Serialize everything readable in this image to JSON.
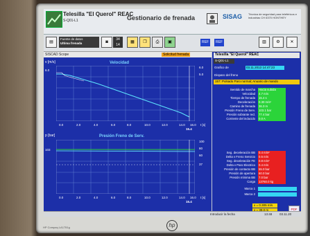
{
  "bezel": {
    "model": "HP Compaq LA1751g",
    "logo": "hp"
  },
  "header": {
    "app_title": "Telesilla \"El Querol\" REAC",
    "app_subtitle": "S-Q01-L1",
    "screen_title": "Gestionario de frenada",
    "brand": "SISAG",
    "brand_text": "Técnica de seguridad para teleféricos e industrias CH 6370 HONTHEY"
  },
  "toolbar": {
    "file_label": "Fuente de datos",
    "file_value": "Ultima frenada",
    "spin_top": "34",
    "spin_bottom": "14",
    "ref_buttons": [
      "REF",
      "REF"
    ]
  },
  "left_panel": {
    "header_left": "SISCAD Scope",
    "status": "Solicitud frenada",
    "chart1": {
      "title": "Velocidad",
      "ylabel": "v [m/s]",
      "ymax_left": "6.0",
      "y_right_top": "6.0",
      "y_right_2": "5.0",
      "xlabel": "t [s]",
      "xmax": "16.0",
      "cursor": "15.4",
      "ticks": [
        "0.0",
        "2.0",
        "4.0",
        "6.0",
        "8.0",
        "10.0",
        "12.0",
        "14.0"
      ]
    },
    "chart2": {
      "title": "Presión Freno de Serv.",
      "ylabel": "p [bar]",
      "y_left": "103",
      "y_right": [
        "100",
        "80",
        "60",
        "37"
      ],
      "xlabel": "t [s]",
      "xmax": "16.0",
      "cursor": "15.4",
      "ticks": [
        "0.0",
        "2.0",
        "4.0",
        "6.0",
        "8.0",
        "10.0",
        "12.0",
        "14.0"
      ]
    }
  },
  "right_panel": {
    "title": "Telesilla \"El Querol\" REAC",
    "id": "S-Q01-L1",
    "grafico_label": "Grafico de",
    "grafico_value": "03.11.2013 14:47:23",
    "disparo_label": "Disparo del freno",
    "description": "157: Pulsado Paro normal; Anuario de mando",
    "green_rows": [
      {
        "label": "Sentido de marcha",
        "value": "Hacia subida"
      },
      {
        "label": "Velocidad",
        "value": "4.7 m/s"
      },
      {
        "label": "Tiempo de frenada",
        "value": "15.4 s"
      },
      {
        "label": "Deceleración",
        "value": "0.30 m/s²"
      },
      {
        "label": "Camino de frenada",
        "value": "36.3 m"
      },
      {
        "label": "Presión Freno de Serv.",
        "value": "103.1 bar"
      },
      {
        "label": "Presión sobrante red.",
        "value": "77.4 bar"
      },
      {
        "label": "Corriente del inducido",
        "value": "0.0 A"
      }
    ],
    "red_rows": [
      {
        "label": "Seg. deceleración BB",
        "value": "0.4 m/s²"
      },
      {
        "label": "Delta v Freno Servicio",
        "value": "0.5 m/s"
      },
      {
        "label": "Seg. deceleración FE",
        "value": "0.8 m/s²"
      },
      {
        "label": "Delta v Paro Electrico",
        "value": "0.4 m/s"
      },
      {
        "label": "Presión de contacto BB",
        "value": "55.0 bar"
      },
      {
        "label": "Presión de apertura",
        "value": "60.0 bar"
      },
      {
        "label": "Presión mínima BB",
        "value": "7.0 bar"
      },
      {
        "label": "Carga",
        "value": "13760.0 kg"
      }
    ],
    "marca1": "Marca 1",
    "marca2": "Marca 2",
    "readout1": "x = 0.305 m/s",
    "readout2": "x = 39.0 m",
    "pdf": "PDF"
  },
  "statusbar": {
    "left": "Introducir la fecha",
    "time": "13:48",
    "date": "03.11.20"
  }
}
